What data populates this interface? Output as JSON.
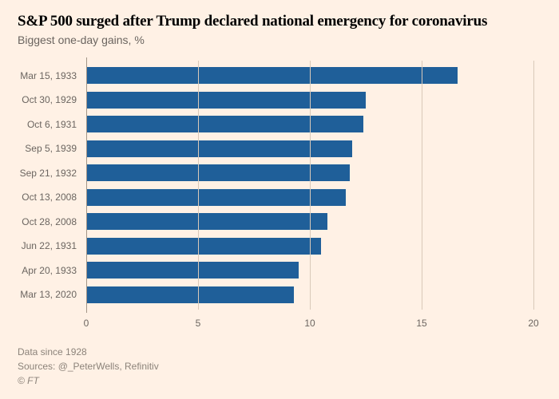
{
  "title": "S&P 500 surged after Trump declared national emergency for coronavirus",
  "subtitle": "Biggest one-day gains, %",
  "chart": {
    "type": "bar-horizontal",
    "xlim": [
      0,
      20
    ],
    "xticks": [
      0,
      5,
      10,
      15,
      20
    ],
    "bar_color": "#1f5f99",
    "background_color": "#fff1e5",
    "grid_color": "#d9c9b9",
    "baseline_color": "#a39587",
    "label_color": "#6b6560",
    "label_fontsize": 12,
    "title_fontsize": 19,
    "title_color": "#000000",
    "subtitle_fontsize": 14,
    "subtitle_color": "#6b6560",
    "rows": [
      {
        "label": "Mar 15, 1933",
        "value": 16.6
      },
      {
        "label": "Oct 30, 1929",
        "value": 12.5
      },
      {
        "label": "Oct 6, 1931",
        "value": 12.4
      },
      {
        "label": "Sep 5, 1939",
        "value": 11.9
      },
      {
        "label": "Sep 21, 1932",
        "value": 11.8
      },
      {
        "label": "Oct 13, 2008",
        "value": 11.6
      },
      {
        "label": "Oct 28, 2008",
        "value": 10.8
      },
      {
        "label": "Jun 22, 1931",
        "value": 10.5
      },
      {
        "label": "Apr 20, 1933",
        "value": 9.5
      },
      {
        "label": "Mar 13, 2020",
        "value": 9.3
      }
    ]
  },
  "footer": {
    "note": "Data since 1928",
    "sources": "Sources: @_PeterWells, Refinitiv",
    "copyright": "© FT"
  }
}
